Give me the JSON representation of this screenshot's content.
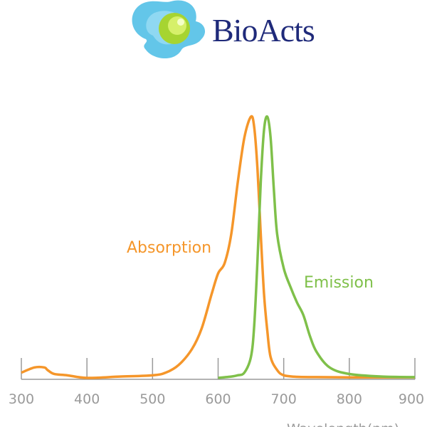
{
  "logo": {
    "text": "BioActs"
  },
  "chart_data": {
    "type": "line",
    "title": "",
    "xlabel": "Wavelength(nm)",
    "ylabel": "",
    "xlim": [
      300,
      900
    ],
    "ylim": [
      0,
      1
    ],
    "xticks": [
      300,
      400,
      500,
      600,
      700,
      800,
      900
    ],
    "grid": false,
    "series": [
      {
        "name": "Absorption",
        "color": "#f5962a",
        "x": [
          300,
          320,
          335,
          340,
          350,
          370,
          400,
          450,
          500,
          520,
          540,
          560,
          575,
          590,
          600,
          610,
          620,
          630,
          640,
          650,
          655,
          660,
          665,
          670,
          675,
          680,
          690,
          700,
          720,
          750,
          800,
          850,
          900
        ],
        "y": [
          0.02,
          0.04,
          0.04,
          0.03,
          0.015,
          0.01,
          0.0,
          0.005,
          0.01,
          0.02,
          0.05,
          0.11,
          0.19,
          0.32,
          0.4,
          0.44,
          0.55,
          0.75,
          0.92,
          1.0,
          0.96,
          0.8,
          0.55,
          0.32,
          0.18,
          0.08,
          0.03,
          0.01,
          0.004,
          0.003,
          0.002,
          0.002,
          0.002
        ]
      },
      {
        "name": "Emission",
        "color": "#7fc04a",
        "x": [
          600,
          620,
          630,
          640,
          650,
          655,
          660,
          665,
          670,
          675,
          680,
          685,
          690,
          700,
          710,
          720,
          730,
          740,
          750,
          770,
          800,
          850,
          900
        ],
        "y": [
          0.0,
          0.005,
          0.01,
          0.02,
          0.08,
          0.2,
          0.45,
          0.75,
          0.95,
          1.0,
          0.92,
          0.72,
          0.55,
          0.42,
          0.35,
          0.29,
          0.24,
          0.16,
          0.1,
          0.04,
          0.015,
          0.005,
          0.003
        ]
      }
    ]
  }
}
